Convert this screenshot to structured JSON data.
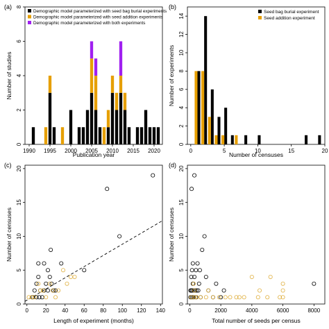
{
  "colors": {
    "black": "#000000",
    "orange": "#e69f00",
    "purple": "#a020f0",
    "orange_open": "#e0b040"
  },
  "chart_data": [
    {
      "panel": "(a)",
      "type": "bar",
      "stacked": true,
      "xlabel": "Publication year",
      "ylabel": "Number of studies",
      "xlim": [
        1989,
        2022
      ],
      "ylim": [
        0,
        8
      ],
      "xticks": [
        1990,
        1995,
        2000,
        2005,
        2010,
        2015,
        2020
      ],
      "yticks": [
        0,
        2,
        4,
        6,
        8
      ],
      "legend_position": "top-left",
      "x": [
        1991,
        1994,
        1995,
        1996,
        1998,
        2000,
        2002,
        2003,
        2004,
        2005,
        2006,
        2007,
        2008,
        2009,
        2010,
        2011,
        2012,
        2013,
        2014,
        2016,
        2017,
        2018,
        2019,
        2020,
        2021
      ],
      "series": [
        {
          "name": "Demographic model parameterized with seed bag burial experiments",
          "color": "black",
          "values": [
            1,
            0,
            3,
            1,
            0,
            2,
            1,
            1,
            2,
            3,
            2,
            1,
            0,
            1,
            3,
            2,
            3,
            2,
            1,
            1,
            1,
            2,
            1,
            1,
            1
          ]
        },
        {
          "name": "Demographic model parameterized with seed addition experiments",
          "color": "orange",
          "values": [
            0,
            1,
            1,
            0,
            1,
            0,
            0,
            0,
            0,
            2,
            2,
            0,
            1,
            1,
            1,
            1,
            1,
            1,
            0,
            0,
            0,
            0,
            0,
            0,
            0
          ]
        },
        {
          "name": "Demographic model parameterized with both experiments",
          "color": "purple",
          "values": [
            0,
            0,
            0,
            0,
            0,
            0,
            0,
            0,
            0,
            1,
            1,
            0,
            0,
            0,
            0,
            0,
            2,
            0,
            0,
            0,
            0,
            0,
            0,
            0,
            0
          ]
        }
      ]
    },
    {
      "panel": "(b)",
      "type": "bar",
      "xlabel": "Number of censuses",
      "ylabel": "Number of experiments",
      "xlim": [
        -0.5,
        20
      ],
      "ylim": [
        0,
        15
      ],
      "xticks": [
        0,
        5,
        10,
        15,
        20
      ],
      "yticks": [
        0,
        2,
        4,
        6,
        8,
        10,
        12,
        14
      ],
      "legend_position": "top-right",
      "series": [
        {
          "name": "Seed bag burial experiment",
          "color": "black",
          "x": [
            1,
            2,
            3,
            4,
            5,
            6,
            8,
            10,
            17,
            19
          ],
          "values": [
            8,
            14,
            6,
            3,
            4,
            1,
            1,
            1,
            1,
            1
          ]
        },
        {
          "name": "Seed addition experiment",
          "color": "orange",
          "x": [
            1,
            2,
            3,
            4,
            5,
            7
          ],
          "values": [
            8,
            8,
            3,
            1,
            1,
            1
          ]
        }
      ]
    },
    {
      "panel": "(c)",
      "type": "scatter",
      "xlabel": "Length of experiment (months)",
      "ylabel": "Number of censuses",
      "xlim": [
        -2,
        142
      ],
      "ylim": [
        0,
        20.5
      ],
      "xticks": [
        0,
        20,
        40,
        60,
        80,
        100,
        120,
        140
      ],
      "yticks": [
        0,
        5,
        10,
        15,
        20
      ],
      "trendline": {
        "style": "dashed",
        "x": [
          -2,
          142
        ],
        "y": [
          0.4,
          12.3
        ]
      },
      "series": [
        {
          "color": "black",
          "points": [
            [
              132,
              19
            ],
            [
              84,
              17
            ],
            [
              97,
              10
            ],
            [
              25,
              8
            ],
            [
              12,
              6
            ],
            [
              18,
              6
            ],
            [
              36,
              6
            ],
            [
              60,
              5
            ],
            [
              22,
              5
            ],
            [
              12,
              4
            ],
            [
              24,
              4
            ],
            [
              10,
              3
            ],
            [
              20,
              3
            ],
            [
              26,
              3
            ],
            [
              8,
              2
            ],
            [
              14,
              2
            ],
            [
              18,
              2
            ],
            [
              22,
              2
            ],
            [
              28,
              2
            ],
            [
              30,
              2
            ],
            [
              6,
              1
            ],
            [
              10,
              1
            ],
            [
              13,
              1
            ],
            [
              16,
              1
            ]
          ]
        },
        {
          "color": "orange",
          "points": [
            [
              2,
              1
            ],
            [
              5,
              1
            ],
            [
              8,
              1
            ],
            [
              12,
              3
            ],
            [
              14,
              2
            ],
            [
              17,
              2
            ],
            [
              20,
              1
            ],
            [
              24,
              3
            ],
            [
              27,
              2
            ],
            [
              33,
              2
            ],
            [
              38,
              5
            ],
            [
              42,
              3
            ],
            [
              46,
              4
            ],
            [
              50,
              4
            ],
            [
              30,
              1
            ]
          ]
        }
      ]
    },
    {
      "panel": "(d)",
      "type": "scatter",
      "xlabel": "Total number of seeds per census",
      "ylabel": "Number of censuses",
      "xlim": [
        -150,
        8700
      ],
      "ylim": [
        0,
        20.5
      ],
      "xticks": [
        0,
        2000,
        4000,
        6000,
        8000
      ],
      "yticks": [
        0,
        5,
        10,
        15,
        20
      ],
      "series": [
        {
          "color": "black",
          "points": [
            [
              300,
              19
            ],
            [
              120,
              17
            ],
            [
              950,
              10
            ],
            [
              800,
              8
            ],
            [
              200,
              6
            ],
            [
              500,
              6
            ],
            [
              650,
              5
            ],
            [
              150,
              5
            ],
            [
              400,
              5
            ],
            [
              1050,
              4
            ],
            [
              100,
              4
            ],
            [
              300,
              4
            ],
            [
              1700,
              3
            ],
            [
              200,
              3
            ],
            [
              600,
              3
            ],
            [
              8000,
              3
            ],
            [
              2200,
              2
            ],
            [
              50,
              2
            ],
            [
              100,
              2
            ],
            [
              150,
              2
            ],
            [
              250,
              2
            ],
            [
              350,
              2
            ],
            [
              450,
              2
            ],
            [
              550,
              2
            ],
            [
              50,
              1
            ],
            [
              150,
              1
            ],
            [
              250,
              1
            ],
            [
              400,
              1
            ],
            [
              700,
              1
            ],
            [
              1200,
              2
            ],
            [
              1500,
              1
            ],
            [
              2000,
              1
            ]
          ]
        },
        {
          "color": "orange",
          "points": [
            [
              4000,
              4
            ],
            [
              5200,
              4
            ],
            [
              6000,
              3
            ],
            [
              4500,
              2
            ],
            [
              3000,
              1
            ],
            [
              6000,
              2
            ],
            [
              6000,
              1
            ],
            [
              3200,
              1
            ],
            [
              4400,
              1
            ],
            [
              5800,
              1
            ],
            [
              1050,
              1
            ],
            [
              1500,
              1
            ],
            [
              1900,
              1
            ],
            [
              2300,
              1
            ],
            [
              700,
              1
            ],
            [
              1200,
              2
            ],
            [
              300,
              1
            ],
            [
              250,
              3
            ],
            [
              100,
              1
            ],
            [
              450,
              1
            ],
            [
              2600,
              1
            ],
            [
              3500,
              1
            ],
            [
              5000,
              1
            ],
            [
              300,
              2
            ]
          ]
        }
      ]
    }
  ]
}
